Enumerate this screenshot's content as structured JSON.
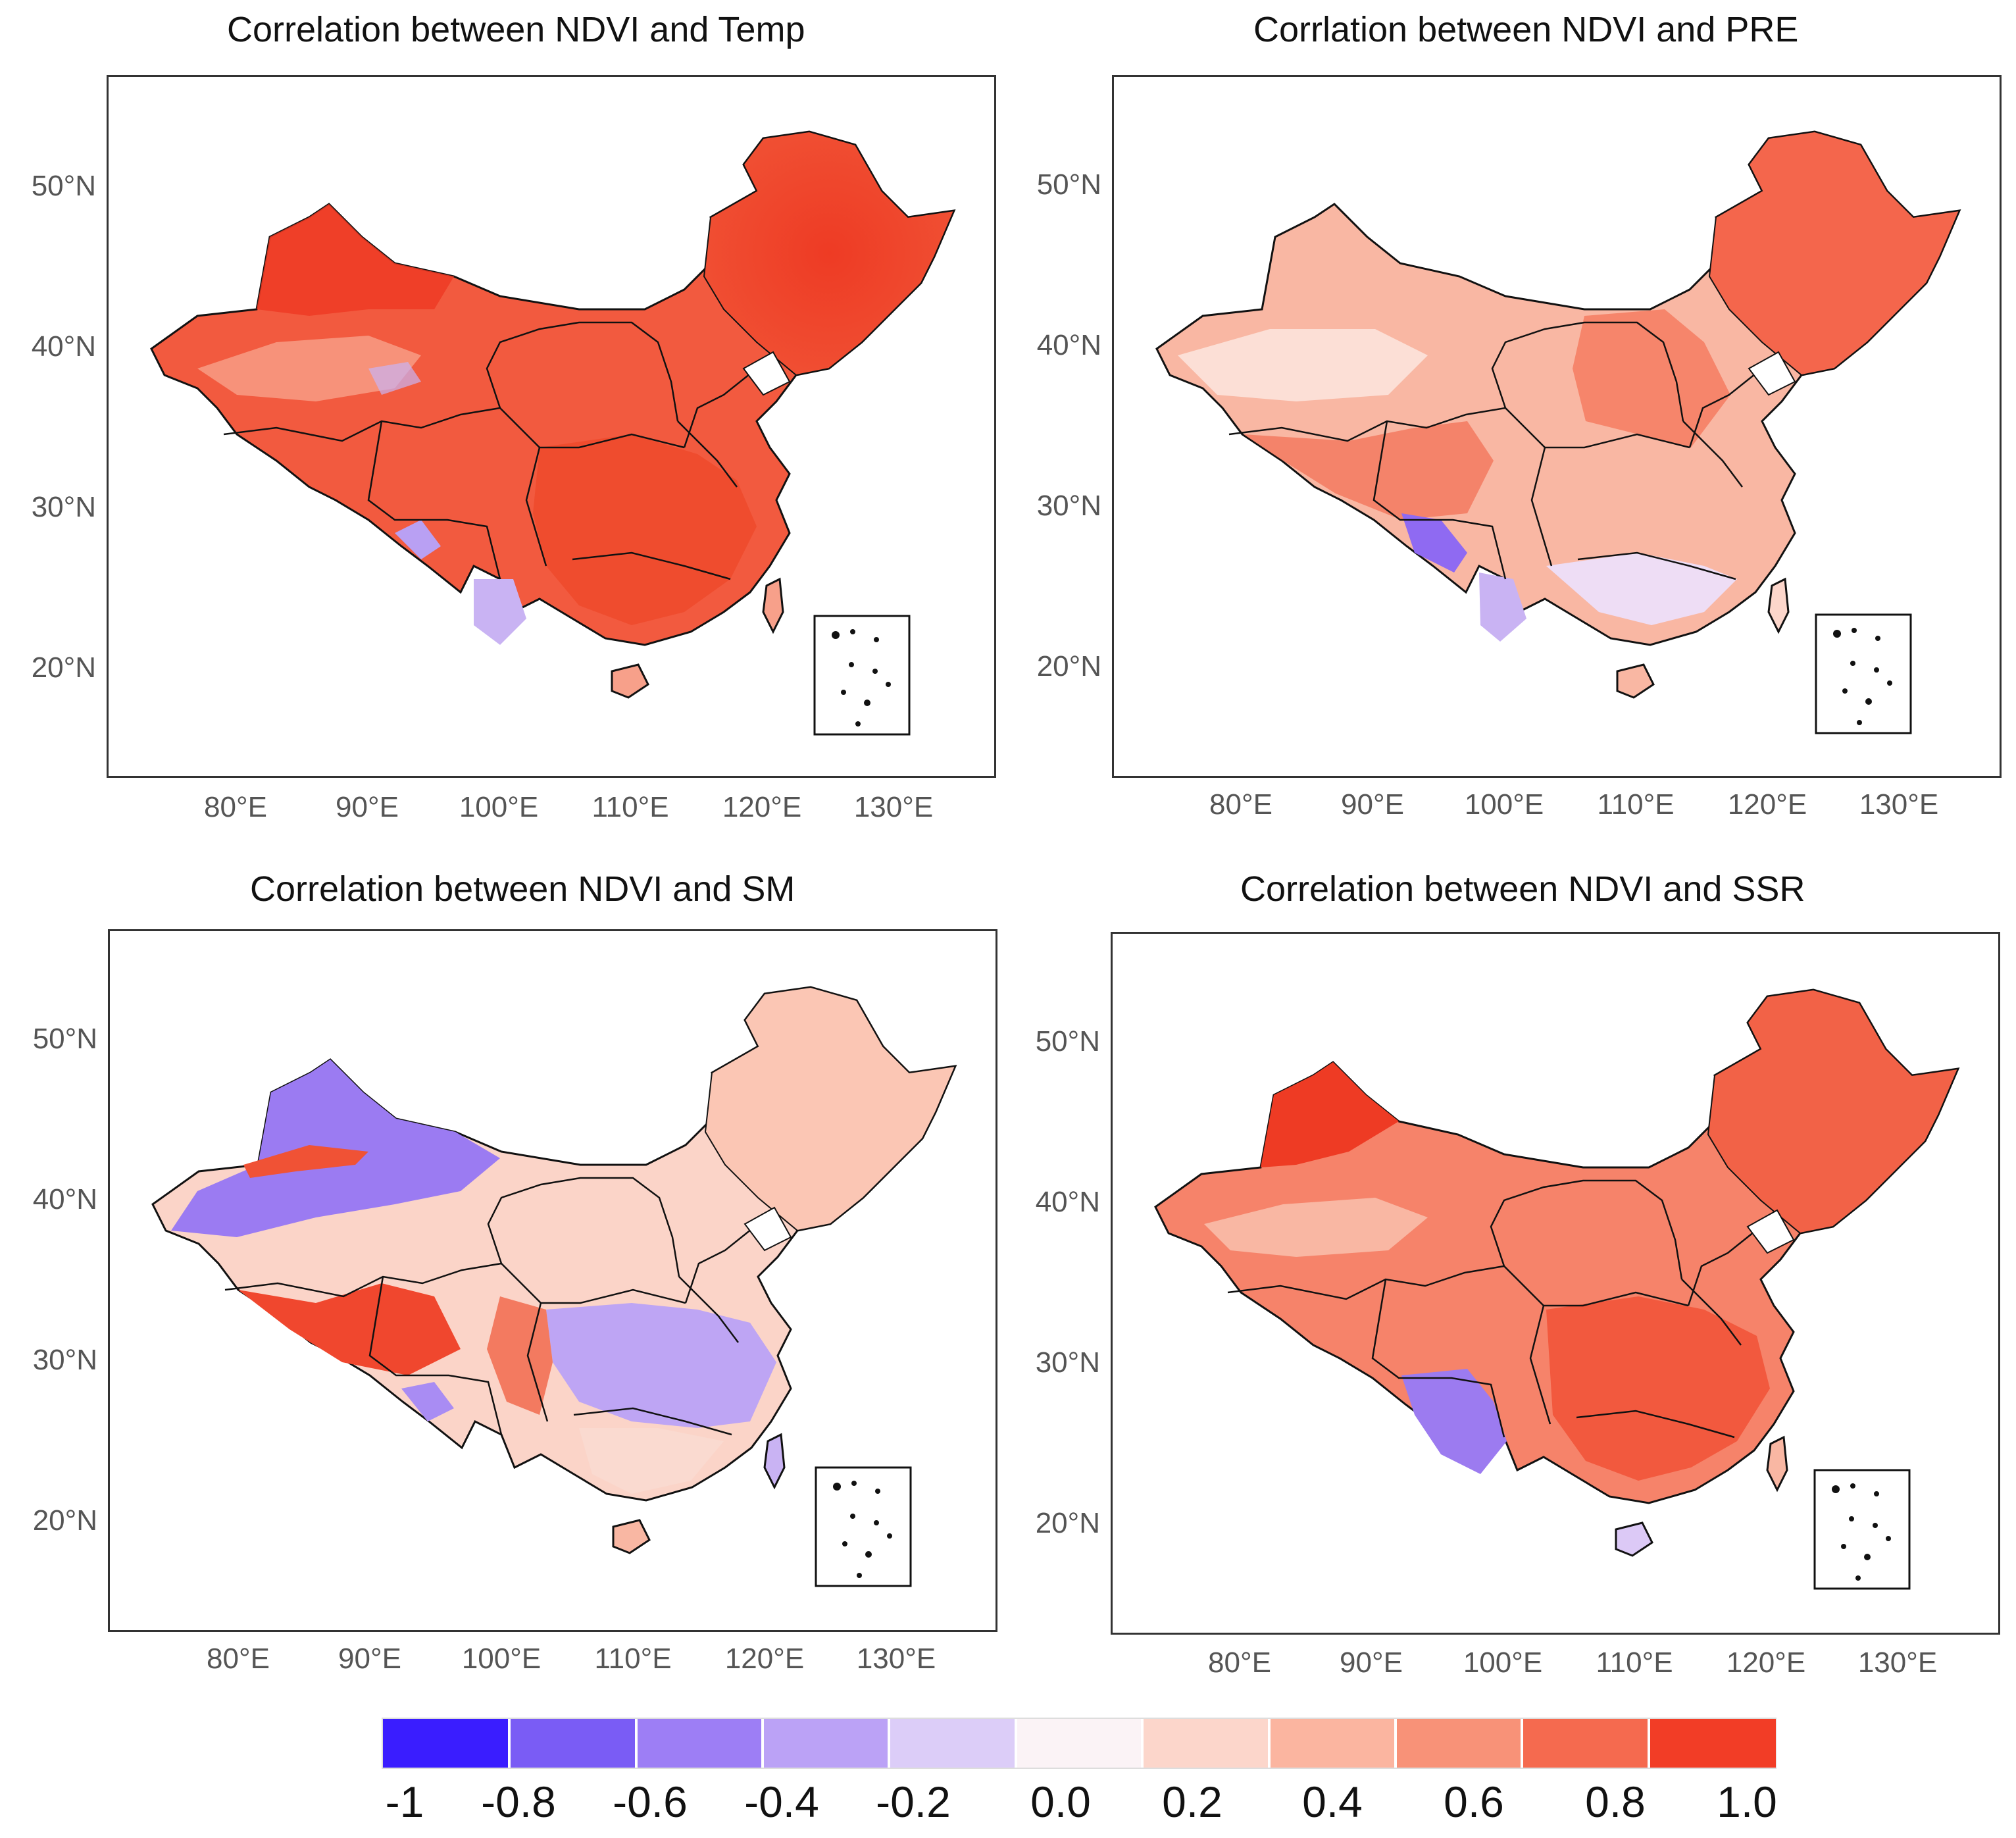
{
  "figure": {
    "panels": [
      {
        "id": "temp",
        "title": "Correlation between NDVI and Temp"
      },
      {
        "id": "pre",
        "title": "Corrlation between NDVI and PRE"
      },
      {
        "id": "sm",
        "title": "Correlation between NDVI and SM"
      },
      {
        "id": "ssr",
        "title": "Correlation between NDVI and SSR"
      }
    ],
    "lat_ticks": [
      "50°N",
      "40°N",
      "30°N",
      "20°N"
    ],
    "lon_ticks": [
      "80°E",
      "90°E",
      "100°E",
      "110°E",
      "120°E",
      "130°E"
    ]
  },
  "colorbar": {
    "labels": [
      "-1",
      "-0.8",
      "-0.6",
      "-0.4",
      "-0.2",
      "0.0",
      "0.2",
      "0.4",
      "0.6",
      "0.8",
      "1.0"
    ],
    "colors": [
      "#3a1dff",
      "#7a5cf5",
      "#9d7ef5",
      "#bba2f6",
      "#dccdf8",
      "#fbf3f6",
      "#fcd6cb",
      "#fbb5a0",
      "#f89278",
      "#f56a4f",
      "#f23d26"
    ]
  },
  "colors": {
    "strong_red": "#ee3b24",
    "red": "#f4644a",
    "light_red": "#f7a08a",
    "pale": "#fbe3dc",
    "light_purple": "#c9b3f3",
    "purple": "#9c7bf0",
    "border": "#111111"
  }
}
